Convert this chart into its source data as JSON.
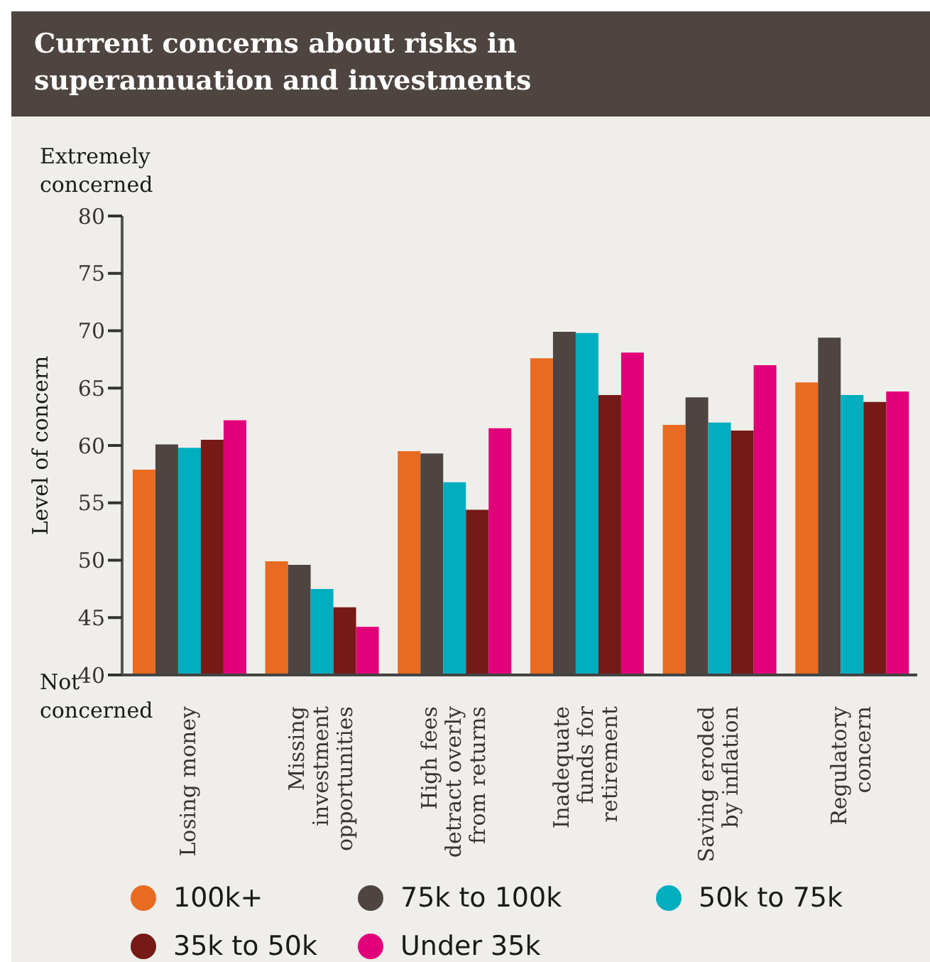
{
  "chart_data": {
    "type": "bar",
    "title": "Current concerns about risks in superannuation and investments",
    "ylabel": "Level of concern",
    "annotations": [
      "Extremely concerned",
      "Not concerned"
    ],
    "categories": [
      "Losing money",
      "Missing investment opportunities",
      "High fees detract overly from returns",
      "Inadequate funds for retirement",
      "Saving eroded by inflation",
      "Regulatory concern"
    ],
    "series": [
      {
        "name": "100k+",
        "color": "#e96b21",
        "values": [
          57.9,
          49.9,
          59.5,
          67.6,
          61.8,
          65.5
        ]
      },
      {
        "name": "75k to 100k",
        "color": "#4e4540",
        "values": [
          60.1,
          49.6,
          59.3,
          69.9,
          64.2,
          69.4
        ]
      },
      {
        "name": "50k to 75k",
        "color": "#00aebf",
        "values": [
          59.8,
          47.5,
          56.8,
          69.8,
          62.0,
          64.4
        ]
      },
      {
        "name": "35k to 50k",
        "color": "#761a17",
        "values": [
          60.5,
          45.9,
          54.4,
          64.4,
          61.3,
          63.8
        ]
      },
      {
        "name": "Under 35k",
        "color": "#e2007a",
        "values": [
          62.2,
          44.2,
          61.5,
          68.1,
          67.0,
          64.7
        ]
      }
    ],
    "ylim": [
      40,
      80
    ],
    "yticks": [
      40,
      45,
      50,
      55,
      60,
      65,
      70,
      75,
      80
    ],
    "grid": false,
    "legend": "bottom"
  }
}
